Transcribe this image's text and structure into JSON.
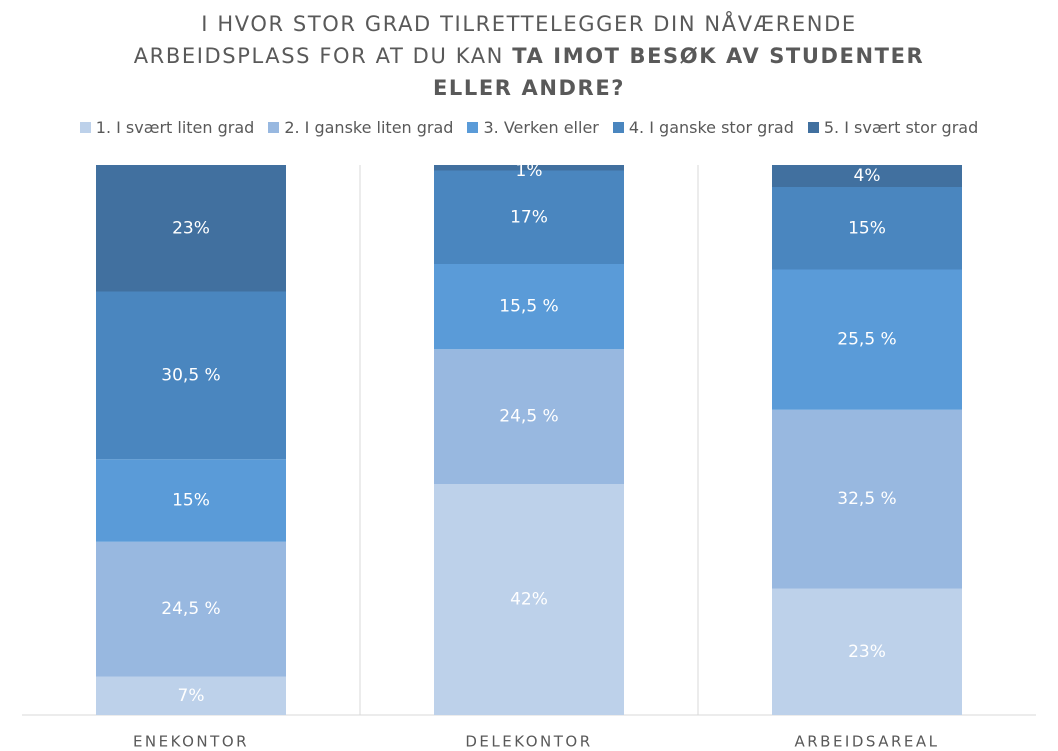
{
  "chart_data": {
    "type": "stacked_bar",
    "title": "I HVOR STOR GRAD TILRETTELEGGER DIN NÅVÆRENDE ARBEIDSPLASS FOR AT DU KAN",
    "title_emphasis": "TA IMOT BESØK AV STUDENTER ELLER ANDRE?",
    "categories": [
      "ENEKONTOR",
      "DELEKONTOR",
      "ARBEIDSAREAL"
    ],
    "ylim": [
      0,
      100
    ],
    "legend": "top",
    "series": [
      {
        "name": "1. I svært liten grad",
        "color": "#bdd1ea",
        "values": [
          7,
          42,
          23
        ],
        "value_labels": [
          "7%",
          "42%",
          "23%"
        ]
      },
      {
        "name": "2. I ganske liten grad",
        "color": "#98b8e0",
        "values": [
          24.5,
          24.5,
          32.5
        ],
        "value_labels": [
          "24,5 %",
          "24,5 %",
          "32,5 %"
        ]
      },
      {
        "name": "3. Verken eller",
        "color": "#5a9bd8",
        "values": [
          15,
          15.5,
          25.5
        ],
        "value_labels": [
          "15%",
          "15,5 %",
          "25,5 %"
        ]
      },
      {
        "name": "4. I ganske stor grad",
        "color": "#4a86bf",
        "values": [
          30.5,
          17,
          15
        ],
        "value_labels": [
          "30,5 %",
          "17%",
          "15%"
        ]
      },
      {
        "name": "5. I svært stor grad",
        "color": "#41709f",
        "values": [
          23,
          1,
          4
        ],
        "value_labels": [
          "23%",
          "1%",
          "4%"
        ]
      }
    ]
  }
}
